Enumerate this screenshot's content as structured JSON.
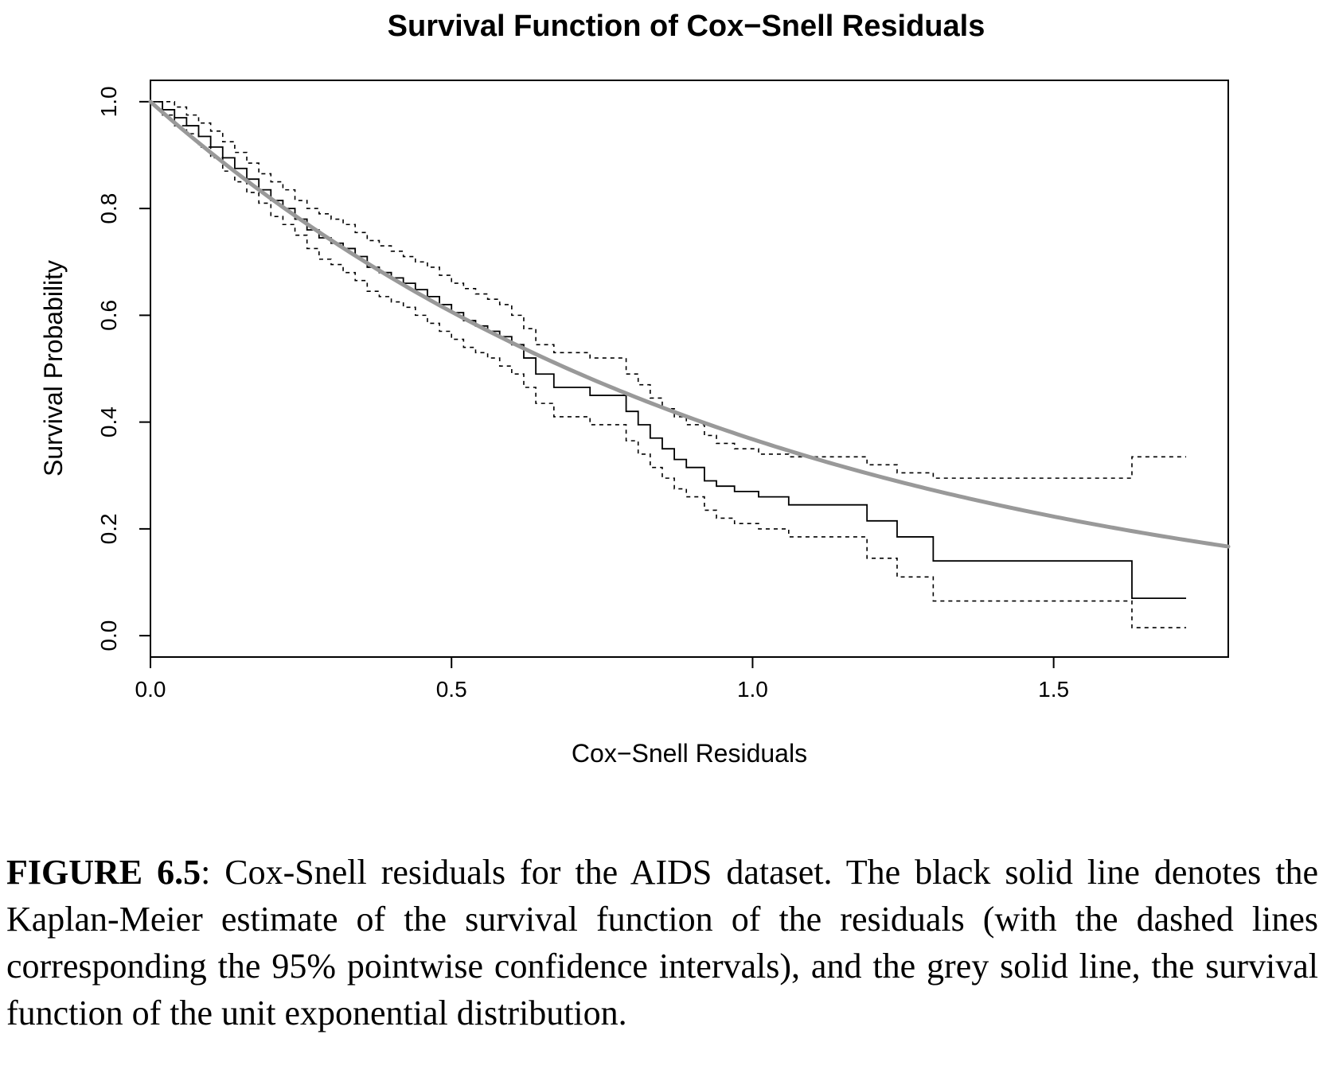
{
  "chart_data": {
    "type": "line",
    "title": "Survival Function of Cox−Snell Residuals",
    "xlabel": "Cox−Snell Residuals",
    "ylabel": "Survival Probability",
    "xlim": [
      0.0,
      1.79
    ],
    "ylim": [
      -0.04,
      1.04
    ],
    "x_ticks": [
      "0.0",
      "0.5",
      "1.0",
      "1.5"
    ],
    "x_tick_values": [
      0.0,
      0.5,
      1.0,
      1.5
    ],
    "y_ticks": [
      "0.0",
      "0.2",
      "0.4",
      "0.6",
      "0.8",
      "1.0"
    ],
    "y_tick_values": [
      0.0,
      0.2,
      0.4,
      0.6,
      0.8,
      1.0
    ],
    "grid": false,
    "legend": "none",
    "colors": {
      "km": "#000000",
      "ci": "#000000",
      "exponential": "#999999"
    },
    "series": [
      {
        "kind": "km",
        "style": "step",
        "x": [
          0,
          0.02,
          0.04,
          0.06,
          0.08,
          0.1,
          0.12,
          0.14,
          0.16,
          0.18,
          0.2,
          0.22,
          0.24,
          0.26,
          0.28,
          0.3,
          0.32,
          0.34,
          0.36,
          0.38,
          0.4,
          0.42,
          0.44,
          0.46,
          0.48,
          0.5,
          0.52,
          0.54,
          0.56,
          0.58,
          0.6,
          0.62,
          0.64,
          0.67,
          0.73,
          0.79,
          0.81,
          0.83,
          0.85,
          0.87,
          0.89,
          0.92,
          0.94,
          0.97,
          1.01,
          1.06,
          1.19,
          1.24,
          1.3,
          1.63,
          1.72
        ],
        "y": [
          1.0,
          0.985,
          0.97,
          0.955,
          0.935,
          0.915,
          0.895,
          0.875,
          0.855,
          0.835,
          0.815,
          0.8,
          0.78,
          0.76,
          0.745,
          0.735,
          0.725,
          0.71,
          0.69,
          0.68,
          0.67,
          0.66,
          0.648,
          0.635,
          0.62,
          0.605,
          0.59,
          0.58,
          0.57,
          0.56,
          0.545,
          0.52,
          0.49,
          0.465,
          0.45,
          0.42,
          0.395,
          0.37,
          0.35,
          0.33,
          0.315,
          0.29,
          0.28,
          0.27,
          0.26,
          0.245,
          0.215,
          0.185,
          0.14,
          0.07,
          0.07
        ]
      },
      {
        "kind": "ci",
        "style": "step",
        "x": [
          0,
          0.02,
          0.04,
          0.06,
          0.08,
          0.1,
          0.12,
          0.14,
          0.16,
          0.18,
          0.2,
          0.22,
          0.24,
          0.26,
          0.28,
          0.3,
          0.32,
          0.34,
          0.36,
          0.38,
          0.4,
          0.42,
          0.44,
          0.46,
          0.48,
          0.5,
          0.52,
          0.54,
          0.56,
          0.58,
          0.6,
          0.62,
          0.64,
          0.67,
          0.73,
          0.79,
          0.81,
          0.83,
          0.85,
          0.87,
          0.89,
          0.92,
          0.94,
          0.97,
          1.01,
          1.06,
          1.19,
          1.24,
          1.3,
          1.63,
          1.72
        ],
        "y": [
          1.0,
          1.0,
          0.99,
          0.975,
          0.96,
          0.945,
          0.925,
          0.905,
          0.885,
          0.865,
          0.85,
          0.835,
          0.815,
          0.8,
          0.79,
          0.78,
          0.77,
          0.755,
          0.74,
          0.73,
          0.72,
          0.71,
          0.7,
          0.69,
          0.675,
          0.66,
          0.65,
          0.64,
          0.63,
          0.62,
          0.6,
          0.575,
          0.545,
          0.53,
          0.52,
          0.49,
          0.47,
          0.445,
          0.425,
          0.41,
          0.395,
          0.375,
          0.36,
          0.35,
          0.34,
          0.335,
          0.32,
          0.305,
          0.295,
          0.335,
          0.335
        ]
      },
      {
        "kind": "ci",
        "style": "step",
        "x": [
          0,
          0.02,
          0.04,
          0.06,
          0.08,
          0.1,
          0.12,
          0.14,
          0.16,
          0.18,
          0.2,
          0.22,
          0.24,
          0.26,
          0.28,
          0.3,
          0.32,
          0.34,
          0.36,
          0.38,
          0.4,
          0.42,
          0.44,
          0.46,
          0.48,
          0.5,
          0.52,
          0.54,
          0.56,
          0.58,
          0.6,
          0.62,
          0.64,
          0.67,
          0.73,
          0.79,
          0.81,
          0.83,
          0.85,
          0.87,
          0.89,
          0.92,
          0.94,
          0.97,
          1.01,
          1.06,
          1.19,
          1.24,
          1.3,
          1.63,
          1.72
        ],
        "y": [
          1.0,
          0.975,
          0.955,
          0.94,
          0.915,
          0.895,
          0.87,
          0.85,
          0.83,
          0.81,
          0.785,
          0.77,
          0.75,
          0.725,
          0.705,
          0.695,
          0.68,
          0.665,
          0.645,
          0.635,
          0.625,
          0.615,
          0.6,
          0.585,
          0.57,
          0.555,
          0.54,
          0.53,
          0.52,
          0.505,
          0.49,
          0.465,
          0.435,
          0.41,
          0.395,
          0.365,
          0.34,
          0.315,
          0.295,
          0.275,
          0.26,
          0.235,
          0.22,
          0.21,
          0.2,
          0.185,
          0.145,
          0.11,
          0.065,
          0.015,
          0.015
        ]
      },
      {
        "kind": "exponential",
        "style": "smooth",
        "function": "exp(-x)",
        "x_range": [
          0,
          1.79
        ]
      }
    ]
  },
  "caption": {
    "label": "FIGURE 6.5",
    "text": ": Cox-Snell residuals for the AIDS dataset. The black solid line denotes the Kaplan-Meier estimate of the survival function of the residuals (with the dashed lines corresponding the 95% pointwise confidence intervals), and the grey solid line, the survival function of the unit exponential distribution."
  }
}
